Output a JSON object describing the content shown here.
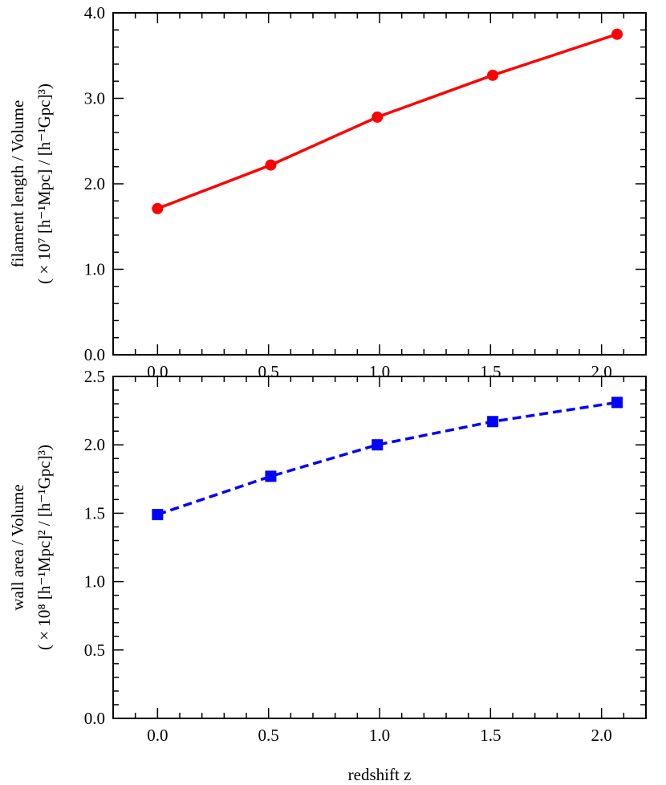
{
  "chart_data": [
    {
      "type": "line",
      "title": "",
      "x": [
        0.0,
        0.51,
        0.99,
        1.51,
        2.07
      ],
      "xlim": [
        -0.2,
        2.2
      ],
      "xticks": [
        0.0,
        0.5,
        1.0,
        1.5,
        2.0
      ],
      "xtick_labels": [
        "0.0",
        "0.5",
        "1.0",
        "1.5",
        "2.0"
      ],
      "ylim": [
        0.0,
        4.0
      ],
      "yticks": [
        0.0,
        1.0,
        2.0,
        3.0,
        4.0
      ],
      "ytick_labels": [
        "0.0",
        "1.0",
        "2.0",
        "3.0",
        "4.0"
      ],
      "ylabel_line1": "filament  length  /  Volume",
      "ylabel_line2": "( × 10⁷  [h⁻¹Mpc] / [h⁻¹Gpc]³)",
      "grid": false,
      "series": [
        {
          "values": [
            1.71,
            2.22,
            2.78,
            3.27,
            3.75
          ],
          "color": "#ff0000",
          "marker": "circle",
          "line_style": "solid"
        }
      ]
    },
    {
      "type": "line",
      "title": "",
      "x": [
        0.0,
        0.51,
        0.99,
        1.51,
        2.07
      ],
      "xlim": [
        -0.2,
        2.2
      ],
      "xticks": [
        0.0,
        0.5,
        1.0,
        1.5,
        2.0
      ],
      "xtick_labels": [
        "0.0",
        "0.5",
        "1.0",
        "1.5",
        "2.0"
      ],
      "xlabel": "redshift z",
      "ylim": [
        0.0,
        2.5
      ],
      "yticks": [
        0.0,
        0.5,
        1.0,
        1.5,
        2.0,
        2.5
      ],
      "ytick_labels": [
        "0.0",
        "0.5",
        "1.0",
        "1.5",
        "2.0",
        "2.5"
      ],
      "ylabel_line1": "wall  area  /  Volume",
      "ylabel_line2": "( × 10⁸  [h⁻¹Mpc]² / [h⁻¹Gpc]³)",
      "grid": false,
      "series": [
        {
          "values": [
            1.49,
            1.77,
            2.0,
            2.17,
            2.31
          ],
          "color": "#0000ff",
          "marker": "square",
          "line_style": "dashed"
        }
      ]
    }
  ]
}
